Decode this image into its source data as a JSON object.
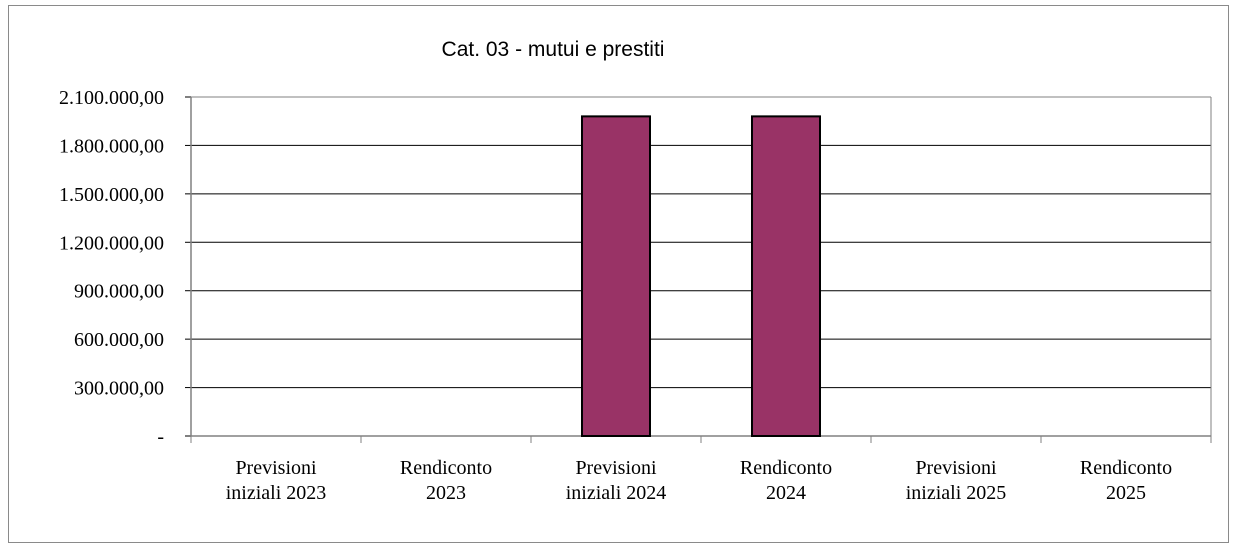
{
  "chart_data": {
    "type": "bar",
    "title": "Cat. 03 - mutui e prestiti",
    "xlabel": "",
    "ylabel": "",
    "categories": [
      [
        "Previsioni",
        "iniziali 2023"
      ],
      [
        "Rendiconto",
        "2023"
      ],
      [
        "Previsioni",
        "iniziali 2024"
      ],
      [
        "Rendiconto",
        "2024"
      ],
      [
        "Previsioni",
        "iniziali 2025"
      ],
      [
        "Rendiconto",
        "2025"
      ]
    ],
    "values": [
      0,
      0,
      1980000,
      1980000,
      0,
      0
    ],
    "ylim": [
      0,
      2100000
    ],
    "yticks": [
      0,
      300000,
      600000,
      900000,
      1200000,
      1500000,
      1800000,
      2100000
    ],
    "ytick_labels": [
      "-",
      "300.000,00",
      "600.000,00",
      "900.000,00",
      "1.200.000,00",
      "1.500.000,00",
      "1.800.000,00",
      "2.100.000,00"
    ],
    "grid": true,
    "legend": "none",
    "bar_color": "#993366",
    "bar_edge_color": "#000000"
  }
}
